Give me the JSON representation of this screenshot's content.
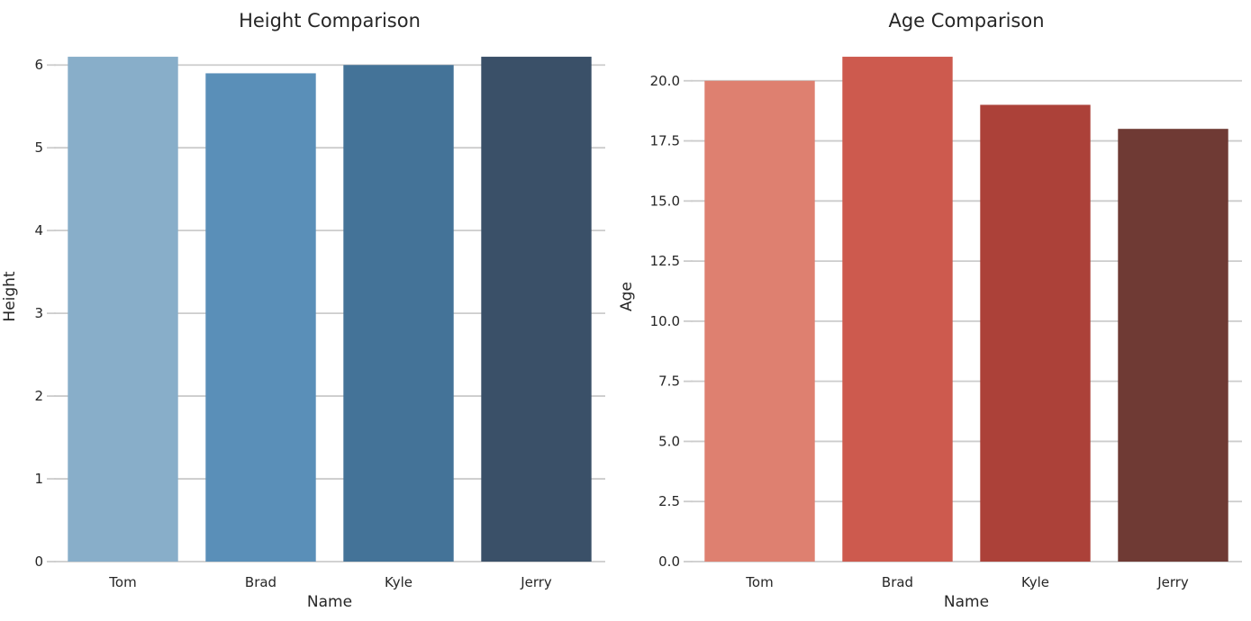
{
  "figure": {
    "background_color": "#ffffff",
    "text_color": "#262626",
    "grid_color": "#cccccc"
  },
  "chart_data": [
    {
      "type": "bar",
      "title": "Height Comparison",
      "xlabel": "Name",
      "ylabel": "Height",
      "categories": [
        "Tom",
        "Brad",
        "Kyle",
        "Jerry"
      ],
      "values": [
        6.1,
        5.9,
        6.0,
        6.1
      ],
      "bar_colors": [
        "#88AEC9",
        "#5A8FB8",
        "#447398",
        "#3A5068"
      ],
      "yticks": [
        0,
        1,
        2,
        3,
        4,
        5,
        6
      ],
      "ytick_labels": [
        "0",
        "1",
        "2",
        "3",
        "4",
        "5",
        "6"
      ],
      "ylim": [
        0,
        6.405
      ],
      "grid": true,
      "legend": false,
      "bar_width_fraction": 0.8
    },
    {
      "type": "bar",
      "title": "Age Comparison",
      "xlabel": "Name",
      "ylabel": "Age",
      "categories": [
        "Tom",
        "Brad",
        "Kyle",
        "Jerry"
      ],
      "values": [
        20,
        21,
        19,
        18
      ],
      "bar_colors": [
        "#DE8070",
        "#CD5A4E",
        "#AC4139",
        "#6F3A34"
      ],
      "yticks": [
        0,
        2.5,
        5,
        7.5,
        10,
        12.5,
        15,
        17.5,
        20
      ],
      "ytick_labels": [
        "0.0",
        "2.5",
        "5.0",
        "7.5",
        "10.0",
        "12.5",
        "15.0",
        "17.5",
        "20.0"
      ],
      "ylim": [
        0,
        22.05
      ],
      "grid": true,
      "legend": false,
      "bar_width_fraction": 0.8
    }
  ]
}
